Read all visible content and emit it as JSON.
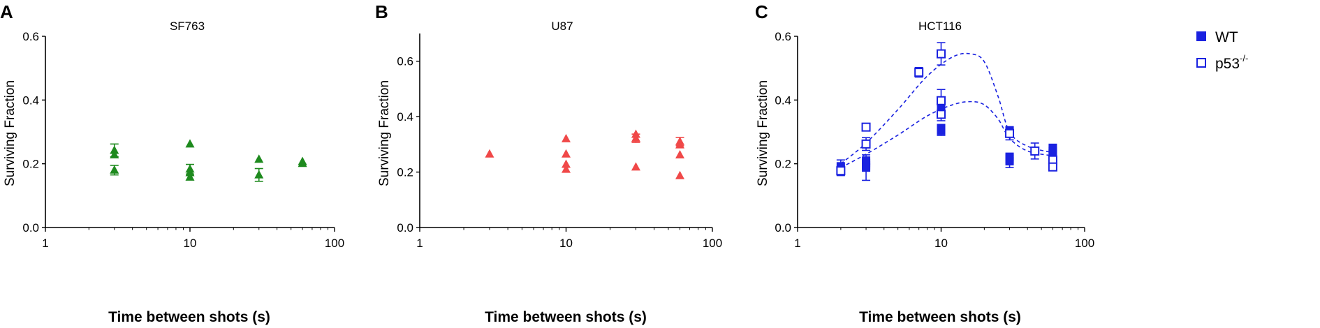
{
  "chart_data": [
    {
      "panel_label": "A",
      "type": "scatter",
      "title": "SF763",
      "xlabel": "Time between shots (s)",
      "ylabel": "Surviving Fraction",
      "xscale": "log",
      "xlim": [
        1,
        100
      ],
      "ylim": [
        0,
        0.6
      ],
      "xticks": [
        1,
        10,
        100
      ],
      "yticks": [
        0.0,
        0.2,
        0.4,
        0.6
      ],
      "xtick_labels": [
        "1",
        "10",
        "100"
      ],
      "ytick_labels": [
        "0.0",
        "0.2",
        "0.4",
        "0.6"
      ],
      "grid": false,
      "color": "#1e8a1e",
      "series": [
        {
          "marker": "triangle",
          "points": [
            {
              "x": 3,
              "y": 0.242,
              "err": 0.02
            },
            {
              "x": 3,
              "y": 0.228
            },
            {
              "x": 3,
              "y": 0.18,
              "err": 0.015
            },
            {
              "x": 10,
              "y": 0.262
            },
            {
              "x": 10,
              "y": 0.183,
              "err": 0.015
            },
            {
              "x": 10,
              "y": 0.172
            },
            {
              "x": 10,
              "y": 0.158
            },
            {
              "x": 30,
              "y": 0.214
            },
            {
              "x": 30,
              "y": 0.165,
              "err": 0.02
            },
            {
              "x": 60,
              "y": 0.207
            },
            {
              "x": 60,
              "y": 0.201
            }
          ]
        }
      ]
    },
    {
      "panel_label": "B",
      "type": "scatter",
      "title": "U87",
      "xlabel": "Time between shots (s)",
      "ylabel": "Surviving Fraction",
      "xscale": "log",
      "xlim": [
        1,
        100
      ],
      "ylim": [
        0,
        0.7
      ],
      "xticks": [
        1,
        10,
        100
      ],
      "yticks": [
        0.0,
        0.2,
        0.4,
        0.6
      ],
      "xtick_labels": [
        "1",
        "10",
        "100"
      ],
      "ytick_labels": [
        "0.0",
        "0.2",
        "0.4",
        "0.6"
      ],
      "grid": false,
      "color": "#f04848",
      "series": [
        {
          "marker": "triangle",
          "points": [
            {
              "x": 3,
              "y": 0.265
            },
            {
              "x": 10,
              "y": 0.32
            },
            {
              "x": 10,
              "y": 0.265
            },
            {
              "x": 10,
              "y": 0.228
            },
            {
              "x": 10,
              "y": 0.21
            },
            {
              "x": 30,
              "y": 0.336
            },
            {
              "x": 30,
              "y": 0.322,
              "err": 0.015
            },
            {
              "x": 30,
              "y": 0.218
            },
            {
              "x": 60,
              "y": 0.31,
              "err": 0.015
            },
            {
              "x": 60,
              "y": 0.298
            },
            {
              "x": 60,
              "y": 0.262
            },
            {
              "x": 60,
              "y": 0.187
            }
          ]
        }
      ]
    },
    {
      "panel_label": "C",
      "type": "scatter",
      "title": "HCT116",
      "xlabel": "Time between shots (s)",
      "ylabel": "Surviving Fraction",
      "xscale": "log",
      "xlim": [
        1,
        100
      ],
      "ylim": [
        0,
        0.6
      ],
      "xticks": [
        1,
        10,
        100
      ],
      "yticks": [
        0.0,
        0.2,
        0.4,
        0.6
      ],
      "xtick_labels": [
        "1",
        "10",
        "100"
      ],
      "ytick_labels": [
        "0.0",
        "0.2",
        "0.4",
        "0.6"
      ],
      "grid": false,
      "color": "#1a22e0",
      "legend": {
        "placement": "top-right",
        "entries": [
          {
            "label": "WT",
            "sup": "",
            "marker": "square-filled"
          },
          {
            "label": "p53",
            "sup": "-/-",
            "marker": "square-open"
          }
        ]
      },
      "series": [
        {
          "name": "WT",
          "marker": "square-filled",
          "points": [
            {
              "x": 2,
              "y": 0.192,
              "err": 0.02
            },
            {
              "x": 3,
              "y": 0.21
            },
            {
              "x": 3,
              "y": 0.202
            },
            {
              "x": 3,
              "y": 0.195
            },
            {
              "x": 3,
              "y": 0.188,
              "err": 0.04
            },
            {
              "x": 10,
              "y": 0.39
            },
            {
              "x": 10,
              "y": 0.375,
              "err": 0.03
            },
            {
              "x": 10,
              "y": 0.312
            },
            {
              "x": 10,
              "y": 0.304,
              "err": 0.015
            },
            {
              "x": 30,
              "y": 0.305
            },
            {
              "x": 30,
              "y": 0.298
            },
            {
              "x": 30,
              "y": 0.222
            },
            {
              "x": 30,
              "y": 0.214
            },
            {
              "x": 30,
              "y": 0.208,
              "err": 0.02
            },
            {
              "x": 60,
              "y": 0.25
            },
            {
              "x": 60,
              "y": 0.24
            },
            {
              "x": 60,
              "y": 0.232
            },
            {
              "x": 60,
              "y": 0.222
            }
          ]
        },
        {
          "name": "p53-/-",
          "marker": "square-open",
          "points": [
            {
              "x": 2,
              "y": 0.178,
              "err": 0.015
            },
            {
              "x": 3,
              "y": 0.315
            },
            {
              "x": 3,
              "y": 0.262,
              "err": 0.02
            },
            {
              "x": 7,
              "y": 0.487,
              "err": 0.015
            },
            {
              "x": 10,
              "y": 0.545,
              "err": 0.035
            },
            {
              "x": 10,
              "y": 0.398,
              "err": 0.035
            },
            {
              "x": 10,
              "y": 0.355,
              "err": 0.02
            },
            {
              "x": 30,
              "y": 0.295,
              "err": 0.02
            },
            {
              "x": 45,
              "y": 0.24,
              "err": 0.025
            },
            {
              "x": 60,
              "y": 0.212
            },
            {
              "x": 60,
              "y": 0.19
            }
          ]
        }
      ],
      "fit_curves": [
        {
          "series": "p53-/-",
          "style": "dashed",
          "points": [
            [
              2,
              0.2
            ],
            [
              3,
              0.265
            ],
            [
              5,
              0.37
            ],
            [
              8,
              0.475
            ],
            [
              12,
              0.535
            ],
            [
              16,
              0.545
            ],
            [
              20,
              0.52
            ],
            [
              25,
              0.41
            ],
            [
              30,
              0.3
            ],
            [
              40,
              0.255
            ],
            [
              60,
              0.235
            ]
          ]
        },
        {
          "series": "WT",
          "style": "dashed",
          "points": [
            [
              2,
              0.188
            ],
            [
              3,
              0.23
            ],
            [
              5,
              0.29
            ],
            [
              8,
              0.35
            ],
            [
              12,
              0.385
            ],
            [
              16,
              0.395
            ],
            [
              20,
              0.385
            ],
            [
              25,
              0.34
            ],
            [
              30,
              0.28
            ],
            [
              40,
              0.24
            ],
            [
              60,
              0.225
            ]
          ]
        }
      ]
    }
  ]
}
